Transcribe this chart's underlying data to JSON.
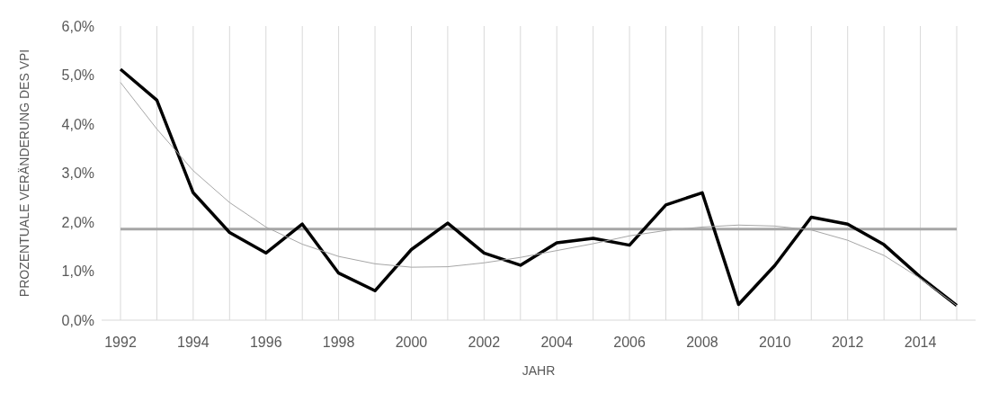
{
  "chart_data": {
    "type": "line",
    "xlabel": "JAHR",
    "ylabel": "PROZENTUALE VERÄNDERUNG DES VPI",
    "categories": [
      "1992",
      null,
      "1994",
      null,
      "1996",
      null,
      "1998",
      null,
      "2000",
      null,
      "2002",
      null,
      "2004",
      null,
      "2006",
      null,
      "2008",
      null,
      "2010",
      null,
      "2012",
      null,
      "2014",
      null
    ],
    "series": [
      {
        "color": "#000000",
        "values": [
          5.12,
          4.49,
          2.6,
          1.79,
          1.37,
          1.96,
          0.96,
          0.6,
          1.44,
          1.98,
          1.37,
          1.12,
          1.58,
          1.67,
          1.53,
          2.35,
          2.6,
          0.32,
          1.12,
          2.1,
          1.96,
          1.54,
          0.88,
          0.3
        ]
      },
      {
        "color": "#a6a6a6",
        "values": [
          4.85,
          3.9,
          3.05,
          2.4,
          1.9,
          1.55,
          1.3,
          1.15,
          1.08,
          1.09,
          1.17,
          1.28,
          1.42,
          1.56,
          1.72,
          1.83,
          1.9,
          1.94,
          1.92,
          1.84,
          1.63,
          1.32,
          0.85,
          0.3
        ]
      }
    ],
    "ylim": [
      0,
      6
    ],
    "yticks": [
      {
        "value": 0,
        "label": "0,0%"
      },
      {
        "value": 1,
        "label": "1,0%"
      },
      {
        "value": 2,
        "label": "2,0%"
      },
      {
        "value": 3,
        "label": "3,0%"
      },
      {
        "value": 4,
        "label": "4,0%"
      },
      {
        "value": 5,
        "label": "5,0%"
      },
      {
        "value": 6,
        "label": "6,0%"
      }
    ],
    "grid": "x",
    "marker": "none",
    "line_style": "solid",
    "ref_lines": [
      {
        "axis": "y",
        "value": 1.86,
        "color": "#a6a6a6"
      }
    ]
  }
}
